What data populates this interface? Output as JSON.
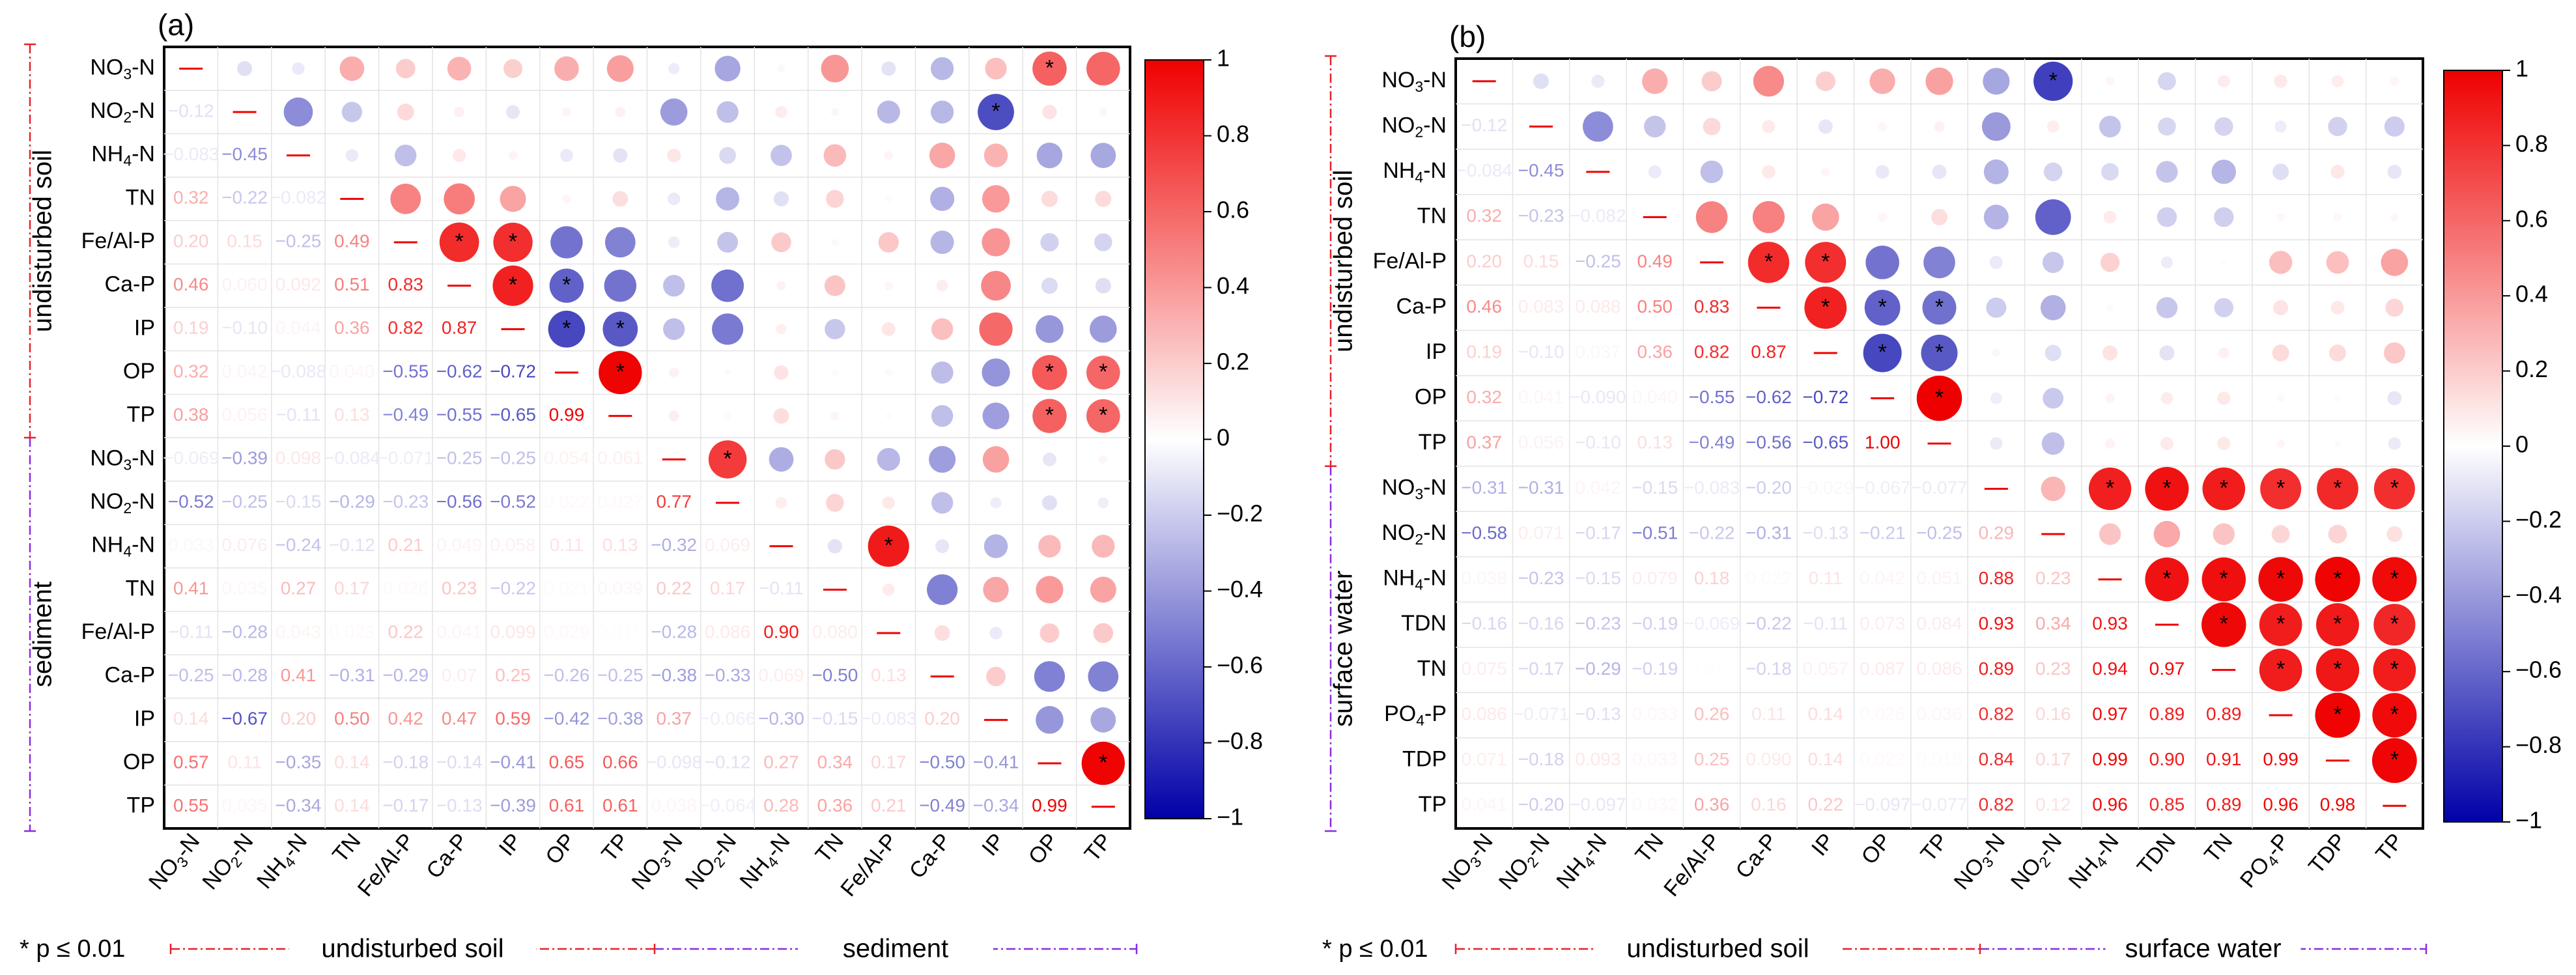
{
  "chart_data": [
    {
      "type": "heatmap",
      "panel_label": "(a)",
      "row_labels": [
        [
          "NO",
          "3",
          "-N"
        ],
        [
          "NO",
          "2",
          "-N"
        ],
        [
          "NH",
          "4",
          "-N"
        ],
        [
          "TN"
        ],
        [
          "Fe/Al-P"
        ],
        [
          "Ca-P"
        ],
        [
          "IP"
        ],
        [
          "OP"
        ],
        [
          "TP"
        ],
        [
          "NO",
          "3",
          "-N"
        ],
        [
          "NO",
          "2",
          "-N"
        ],
        [
          "NH",
          "4",
          "-N"
        ],
        [
          "TN"
        ],
        [
          "Fe/Al-P"
        ],
        [
          "Ca-P"
        ],
        [
          "IP"
        ],
        [
          "OP"
        ],
        [
          "TP"
        ]
      ],
      "col_labels": [
        [
          "NO",
          "3",
          "-N"
        ],
        [
          "NO",
          "2",
          "-N"
        ],
        [
          "NH",
          "4",
          "-N"
        ],
        [
          "TN"
        ],
        [
          "Fe/Al-P"
        ],
        [
          "Ca-P"
        ],
        [
          "IP"
        ],
        [
          "OP"
        ],
        [
          "TP"
        ],
        [
          "NO",
          "3",
          "-N"
        ],
        [
          "NO",
          "2",
          "-N"
        ],
        [
          "NH",
          "4",
          "-N"
        ],
        [
          "TN"
        ],
        [
          "Fe/Al-P"
        ],
        [
          "Ca-P"
        ],
        [
          "IP"
        ],
        [
          "OP"
        ],
        [
          "TP"
        ]
      ],
      "group_labels": [
        "undisturbed soil",
        "sediment"
      ],
      "group_size": 9,
      "lower_labels": [
        [],
        [
          "-0.12"
        ],
        [
          "-0.083",
          "-0.45"
        ],
        [
          "0.32",
          "-0.22",
          "-0.082"
        ],
        [
          "0.20",
          "0.15",
          "-0.25",
          "0.49"
        ],
        [
          "0.46",
          "0.060",
          "0.092",
          "0.51",
          "0.83"
        ],
        [
          "0.19",
          "-0.10",
          "0.044",
          "0.36",
          "0.82",
          "0.87"
        ],
        [
          "0.32",
          "0.042",
          "-0.088",
          "0.040",
          "-0.55",
          "-0.62",
          "-0.72"
        ],
        [
          "0.38",
          "0.056",
          "-0.11",
          "0.13",
          "-0.49",
          "-0.55",
          "-0.65",
          "0.99"
        ],
        [
          "-0.069",
          "-0.39",
          "0.098",
          "-0.084",
          "-0.071",
          "-0.25",
          "-0.25",
          "0.054",
          "0.061"
        ],
        [
          "-0.52",
          "-0.25",
          "-0.15",
          "-0.29",
          "-0.23",
          "-0.56",
          "-0.52",
          "0.022",
          "0.027",
          "0.77"
        ],
        [
          "0.033",
          "0.076",
          "-0.24",
          "-0.12",
          "0.21",
          "0.049",
          "0.058",
          "0.11",
          "0.13",
          "-0.32",
          "0.069"
        ],
        [
          "0.41",
          "0.035",
          "0.27",
          "0.17",
          "0.026",
          "0.23",
          "-0.22",
          "0.021",
          "0.039",
          "0.22",
          "0.17",
          "-0.11"
        ],
        [
          "-0.11",
          "-0.28",
          "0.043",
          "0.023",
          "0.22",
          "0.041",
          "0.099",
          "0.029",
          "0.015",
          "-0.28",
          "0.086",
          "0.90",
          "0.080"
        ],
        [
          "-0.25",
          "-0.28",
          "0.41",
          "-0.31",
          "-0.29",
          "0.07",
          "0.25",
          "-0.26",
          "-0.25",
          "-0.38",
          "-0.33",
          "0.069",
          "-0.50",
          "0.13"
        ],
        [
          "0.14",
          "-0.67",
          "0.20",
          "0.50",
          "0.42",
          "0.47",
          "0.59",
          "-0.42",
          "-0.38",
          "0.37",
          "-0.066",
          "-0.30",
          "-0.15",
          "-0.083",
          "0.20"
        ],
        [
          "0.57",
          "0.11",
          "-0.35",
          "0.14",
          "-0.18",
          "-0.14",
          "-0.41",
          "0.65",
          "0.66",
          "-0.098",
          "-0.12",
          "0.27",
          "0.34",
          "0.17",
          "-0.50",
          "-0.41"
        ],
        [
          "0.55",
          "0.035",
          "-0.34",
          "0.14",
          "-0.17",
          "-0.13",
          "-0.39",
          "0.61",
          "0.61",
          "0.038",
          "-0.064",
          "0.28",
          "0.36",
          "0.21",
          "-0.49",
          "-0.34",
          "0.99"
        ]
      ],
      "upper_overrides": [
        [
          0,
          5,
          "0.30"
        ],
        [
          0,
          10,
          "-0.35"
        ],
        [
          0,
          14,
          "-0.28"
        ],
        [
          0,
          15,
          "0.25"
        ],
        [
          0,
          16,
          "0.62"
        ],
        [
          0,
          17,
          "0.60"
        ],
        [
          1,
          15,
          "-0.70"
        ],
        [
          2,
          14,
          "0.35"
        ],
        [
          2,
          15,
          "0.30"
        ],
        [
          3,
          15,
          "0.40"
        ],
        [
          7,
          16,
          "0.65"
        ],
        [
          7,
          17,
          "0.60"
        ],
        [
          8,
          16,
          "0.62"
        ],
        [
          8,
          17,
          "0.60"
        ],
        [
          10,
          14,
          "-0.25"
        ],
        [
          11,
          13,
          "0.90"
        ],
        [
          11,
          14,
          "-0.10"
        ],
        [
          12,
          14,
          "-0.50"
        ],
        [
          12,
          15,
          "0.35"
        ],
        [
          12,
          16,
          "0.40"
        ],
        [
          12,
          17,
          "0.36"
        ],
        [
          13,
          16,
          "0.20"
        ],
        [
          14,
          16,
          "-0.50"
        ],
        [
          14,
          17,
          "-0.49"
        ],
        [
          15,
          17,
          "-0.34"
        ]
      ],
      "significant": [
        [
          0,
          16
        ],
        [
          1,
          15
        ],
        [
          4,
          5
        ],
        [
          4,
          6
        ],
        [
          5,
          6
        ],
        [
          5,
          7
        ],
        [
          6,
          7
        ],
        [
          6,
          8
        ],
        [
          7,
          8
        ],
        [
          7,
          16
        ],
        [
          7,
          17
        ],
        [
          8,
          16
        ],
        [
          8,
          17
        ],
        [
          9,
          10
        ],
        [
          11,
          13
        ],
        [
          16,
          17
        ]
      ],
      "colorbar": {
        "min": -1,
        "max": 1,
        "ticks": [
          "1",
          "0.8",
          "0.6",
          "0.4",
          "0.2",
          "0",
          "−0.2",
          "−0.4",
          "−0.6",
          "−0.8",
          "−1"
        ]
      },
      "footnote": "* p ≤ 0.01",
      "colors": {
        "positive": "#ef0000",
        "negative": "#0000a8",
        "neutral": "#ffffff",
        "group1": "#e8202a",
        "group2": "#8a2be2"
      }
    },
    {
      "type": "heatmap",
      "panel_label": "(b)",
      "row_labels": [
        [
          "NO",
          "3",
          "-N"
        ],
        [
          "NO",
          "2",
          "-N"
        ],
        [
          "NH",
          "4",
          "-N"
        ],
        [
          "TN"
        ],
        [
          "Fe/Al-P"
        ],
        [
          "Ca-P"
        ],
        [
          "IP"
        ],
        [
          "OP"
        ],
        [
          "TP"
        ],
        [
          "NO",
          "3",
          "-N"
        ],
        [
          "NO",
          "2",
          "-N"
        ],
        [
          "NH",
          "4",
          "-N"
        ],
        [
          "TDN"
        ],
        [
          "TN"
        ],
        [
          "PO",
          "4",
          "-P"
        ],
        [
          "TDP"
        ],
        [
          "TP"
        ]
      ],
      "col_labels": [
        [
          "NO",
          "3",
          "-N"
        ],
        [
          "NO",
          "2",
          "-N"
        ],
        [
          "NH",
          "4",
          "-N"
        ],
        [
          "TN"
        ],
        [
          "Fe/Al-P"
        ],
        [
          "Ca-P"
        ],
        [
          "IP"
        ],
        [
          "OP"
        ],
        [
          "TP"
        ],
        [
          "NO",
          "3",
          "-N"
        ],
        [
          "NO",
          "2",
          "-N"
        ],
        [
          "NH",
          "4",
          "-N"
        ],
        [
          "TDN"
        ],
        [
          "TN"
        ],
        [
          "PO",
          "4",
          "-P"
        ],
        [
          "TDP"
        ],
        [
          "TP"
        ]
      ],
      "group_labels": [
        "undisturbed soil",
        "surface water"
      ],
      "group_size": 9,
      "lower_labels": [
        [],
        [
          "-0.12"
        ],
        [
          "-0.084",
          "-0.45"
        ],
        [
          "0.32",
          "-0.23",
          "-0.082"
        ],
        [
          "0.20",
          "0.15",
          "-0.25",
          "0.49"
        ],
        [
          "0.46",
          "0.083",
          "0.088",
          "0.50",
          "0.83"
        ],
        [
          "0.19",
          "-0.10",
          "0.037",
          "0.36",
          "0.82",
          "0.87"
        ],
        [
          "0.32",
          "0.041",
          "-0.090",
          "0.040",
          "-0.55",
          "-0.62",
          "-0.72"
        ],
        [
          "0.37",
          "0.056",
          "-0.10",
          "0.13",
          "-0.49",
          "-0.56",
          "-0.65",
          "1.00"
        ],
        [
          "-0.31",
          "-0.31",
          "0.042",
          "-0.15",
          "-0.083",
          "-0.20",
          "-0.029",
          "-0.067",
          "-0.077"
        ],
        [
          "-0.58",
          "0.071",
          "-0.17",
          "-0.51",
          "-0.22",
          "-0.31",
          "-0.13",
          "-0.21",
          "-0.25",
          "0.29"
        ],
        [
          "0.038",
          "-0.23",
          "-0.15",
          "0.079",
          "0.18",
          "0.022",
          "0.11",
          "0.042",
          "0.051",
          "0.88",
          "0.23"
        ],
        [
          "-0.16",
          "-0.16",
          "-0.23",
          "-0.19",
          "-0.069",
          "-0.22",
          "-0.11",
          "0.073",
          "0.084",
          "0.93",
          "0.34",
          "0.93"
        ],
        [
          "0.075",
          "-0.17",
          "-0.29",
          "-0.19",
          "0.012",
          "-0.18",
          "0.057",
          "0.087",
          "0.086",
          "0.89",
          "0.23",
          "0.94",
          "0.97"
        ],
        [
          "0.086",
          "-0.071",
          "-0.13",
          "0.033",
          "0.26",
          "0.11",
          "0.14",
          "0.026",
          "0.036",
          "0.82",
          "0.16",
          "0.97",
          "0.89",
          "0.89"
        ],
        [
          "0.071",
          "-0.18",
          "0.093",
          "0.033",
          "0.25",
          "0.090",
          "0.14",
          "0.022",
          "0.018",
          "0.84",
          "0.17",
          "0.99",
          "0.90",
          "0.91",
          "0.99"
        ],
        [
          "0.041",
          "-0.20",
          "-0.097",
          "0.032",
          "0.36",
          "0.16",
          "0.22",
          "-0.097",
          "-0.077",
          "0.82",
          "0.12",
          "0.96",
          "0.85",
          "0.89",
          "0.96",
          "0.98"
        ]
      ],
      "upper_overrides": [
        [
          0,
          10,
          "-0.75"
        ],
        [
          0,
          9,
          "-0.35"
        ],
        [
          1,
          9,
          "-0.40"
        ],
        [
          2,
          9,
          "-0.30"
        ],
        [
          3,
          9,
          "-0.30"
        ],
        [
          3,
          10,
          "-0.62"
        ]
      ],
      "significant": [
        [
          0,
          10
        ],
        [
          4,
          5
        ],
        [
          4,
          6
        ],
        [
          5,
          6
        ],
        [
          5,
          7
        ],
        [
          5,
          8
        ],
        [
          6,
          7
        ],
        [
          6,
          8
        ],
        [
          7,
          8
        ],
        [
          9,
          11
        ],
        [
          9,
          12
        ],
        [
          9,
          13
        ],
        [
          9,
          14
        ],
        [
          9,
          15
        ],
        [
          9,
          16
        ],
        [
          11,
          12
        ],
        [
          11,
          13
        ],
        [
          11,
          14
        ],
        [
          11,
          15
        ],
        [
          11,
          16
        ],
        [
          12,
          13
        ],
        [
          12,
          14
        ],
        [
          12,
          15
        ],
        [
          12,
          16
        ],
        [
          13,
          14
        ],
        [
          13,
          15
        ],
        [
          13,
          16
        ],
        [
          14,
          15
        ],
        [
          14,
          16
        ],
        [
          15,
          16
        ]
      ],
      "colorbar": {
        "min": -1,
        "max": 1,
        "ticks": [
          "1",
          "0.8",
          "0.6",
          "0.4",
          "0.2",
          "0",
          "−0.2",
          "−0.4",
          "−0.6",
          "−0.8",
          "−1"
        ]
      },
      "footnote": "* p ≤ 0.01",
      "colors": {
        "positive": "#ef0000",
        "negative": "#0000a8",
        "neutral": "#ffffff",
        "group1": "#e8202a",
        "group2": "#8a2be2"
      }
    }
  ]
}
